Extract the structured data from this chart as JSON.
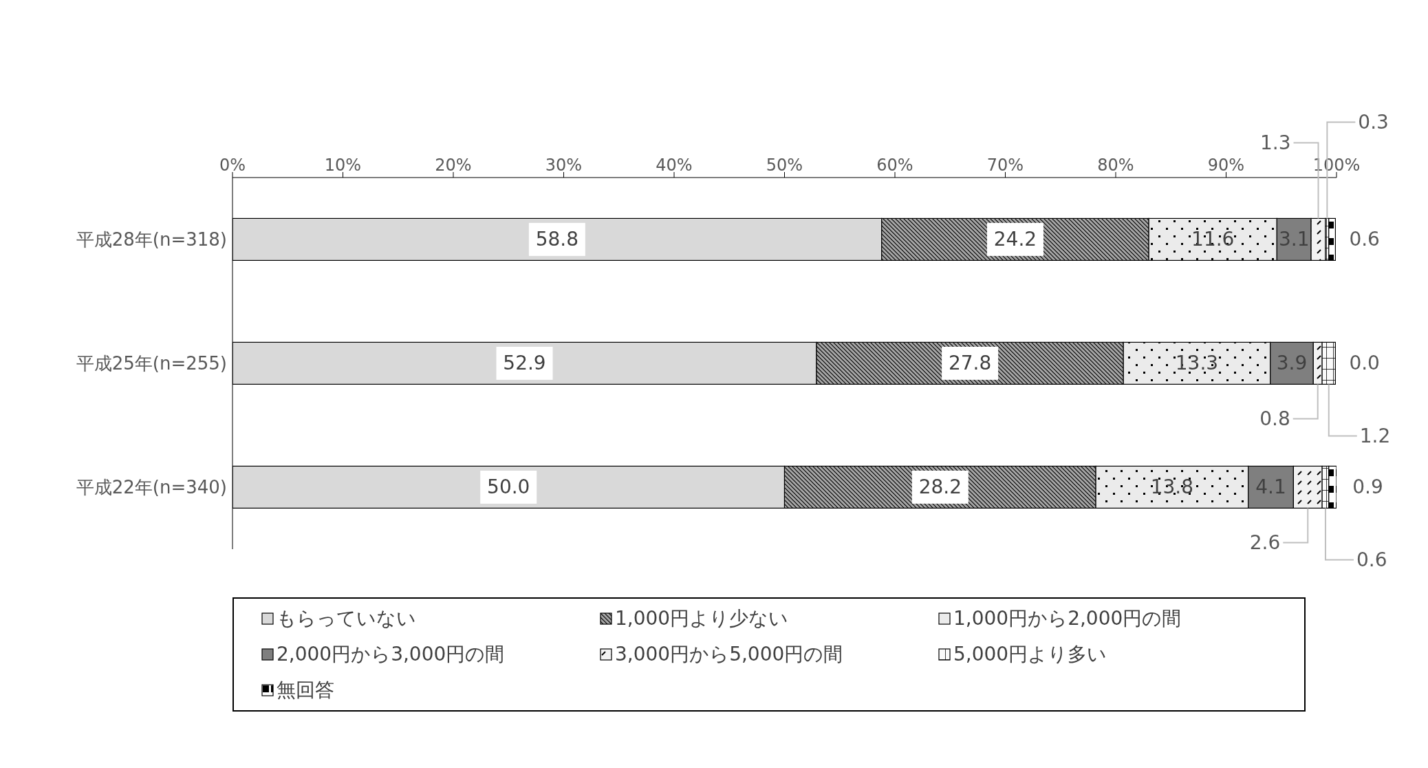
{
  "chart_data": {
    "type": "bar",
    "orientation": "horizontal",
    "stacked": true,
    "grid": false,
    "legend": "bottom",
    "categories": [
      "平成28年(n=318)",
      "平成25年(n=255)",
      "平成22年(n=340)"
    ],
    "xlim": [
      0,
      100
    ],
    "xticks": [
      {
        "value": 0,
        "label": "0%"
      },
      {
        "value": 10,
        "label": "10%"
      },
      {
        "value": 20,
        "label": "20%"
      },
      {
        "value": 30,
        "label": "30%"
      },
      {
        "value": 40,
        "label": "40%"
      },
      {
        "value": 50,
        "label": "50%"
      },
      {
        "value": 60,
        "label": "60%"
      },
      {
        "value": 70,
        "label": "70%"
      },
      {
        "value": 80,
        "label": "80%"
      },
      {
        "value": 90,
        "label": "90%"
      },
      {
        "value": 100,
        "label": "100%"
      }
    ],
    "series": [
      {
        "name": "もらっていない",
        "color": "#d9d9d9",
        "values": [
          58.8,
          52.9,
          50.0
        ],
        "value_labels": [
          "58.8",
          "52.9",
          "50.0"
        ]
      },
      {
        "name": "1,000円より少ない",
        "color": "#a6a6a6",
        "values": [
          24.2,
          27.8,
          28.2
        ],
        "value_labels": [
          "24.2",
          "27.8",
          "28.2"
        ]
      },
      {
        "name": "1,000円から2,000円の間",
        "color": "#ebebeb",
        "values": [
          11.6,
          13.3,
          13.8
        ],
        "value_labels": [
          "11.6",
          "13.3",
          "13.8"
        ]
      },
      {
        "name": "2,000円から3,000円の間",
        "color": "#7f7f7f",
        "values": [
          3.1,
          3.9,
          4.1
        ],
        "value_labels": [
          "3.1",
          "3.9",
          "4.1"
        ]
      },
      {
        "name": "3,000円から5,000円の間",
        "color": "#f2f2f2",
        "values": [
          1.3,
          0.8,
          2.6
        ],
        "value_labels": [
          "1.3",
          "0.8",
          "2.6"
        ]
      },
      {
        "name": "5,000円より多い",
        "color": "#fafafa",
        "values": [
          0.3,
          1.2,
          0.6
        ],
        "value_labels": [
          "0.3",
          "1.2",
          "0.6"
        ]
      },
      {
        "name": "無回答",
        "color": "#000000",
        "values": [
          0.6,
          0.0,
          0.9
        ],
        "value_labels": [
          "0.6",
          "0.0",
          "0.9"
        ]
      }
    ]
  }
}
